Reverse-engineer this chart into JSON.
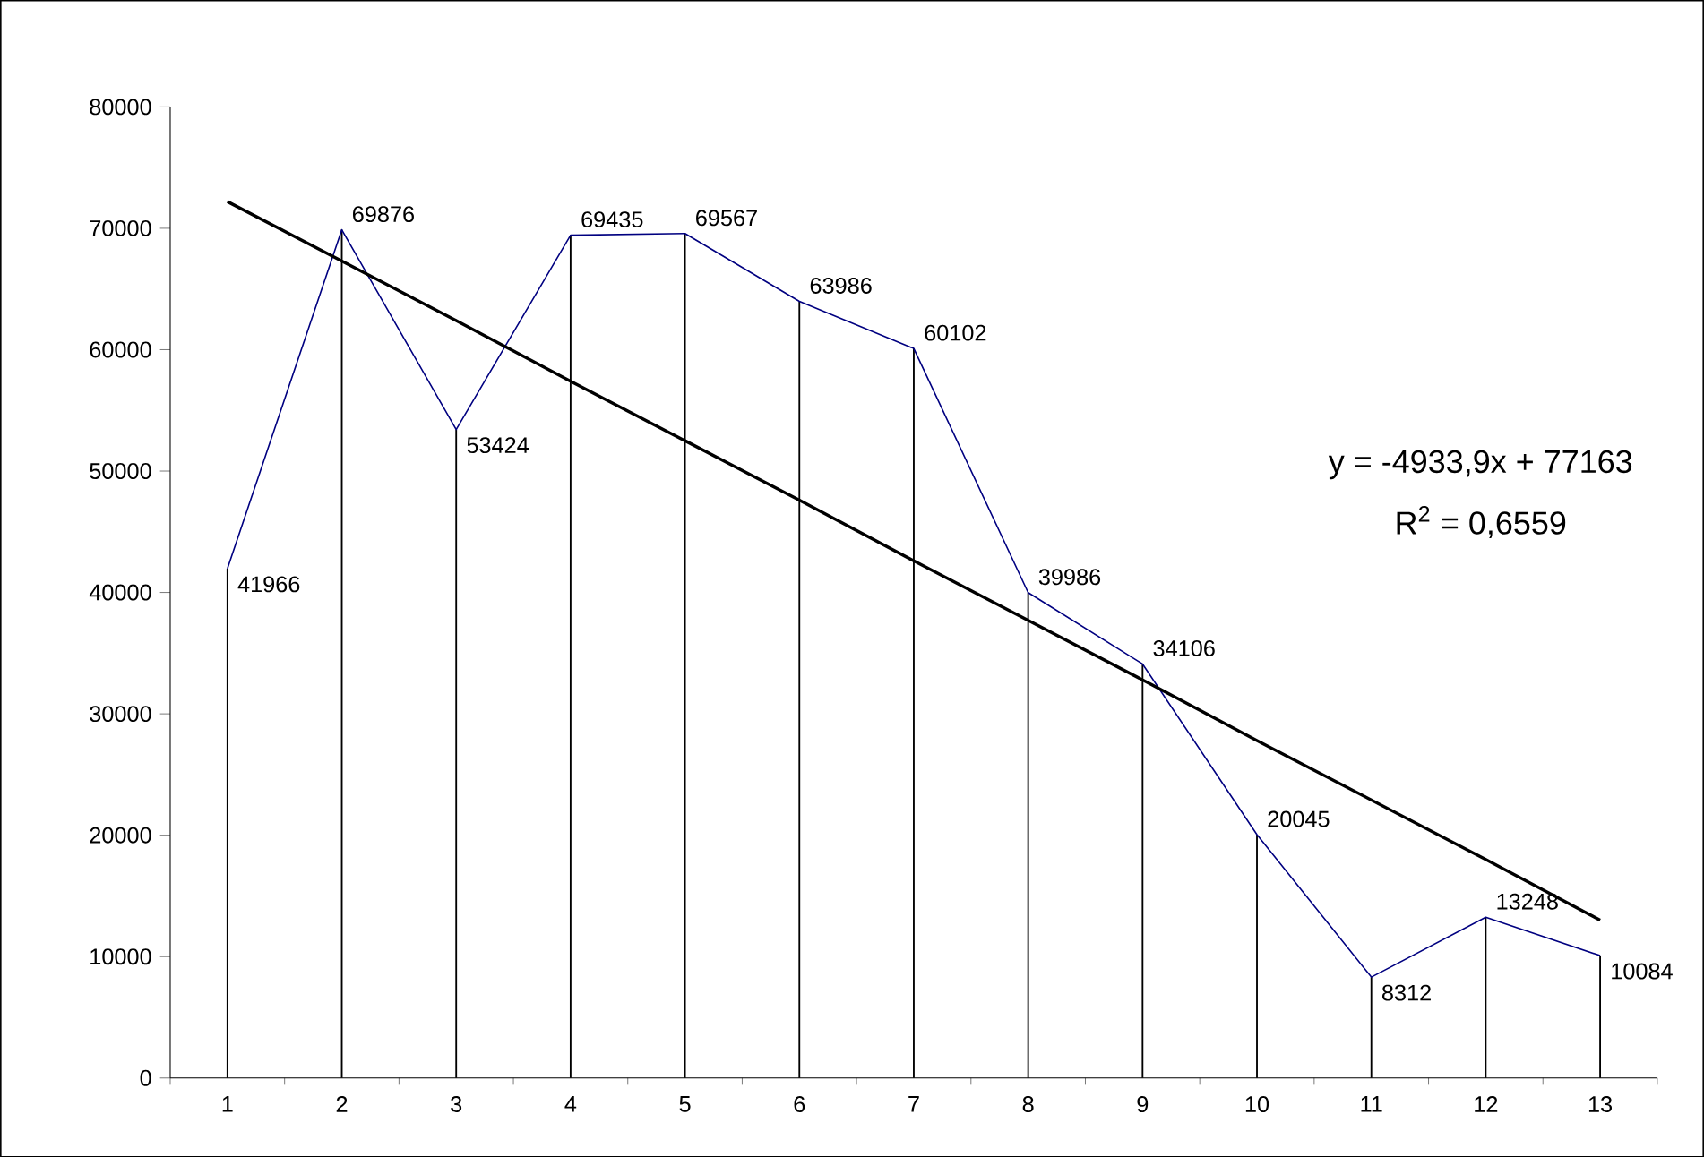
{
  "chart_data": {
    "type": "line",
    "categories": [
      "1",
      "2",
      "3",
      "4",
      "5",
      "6",
      "7",
      "8",
      "9",
      "10",
      "11",
      "12",
      "13"
    ],
    "series": [
      {
        "type": "bar",
        "color": "#000000",
        "values": [
          41966,
          69876,
          53424,
          69435,
          69567,
          63986,
          60102,
          39986,
          34106,
          20045,
          8312,
          13248,
          10084
        ]
      },
      {
        "color": "#000080",
        "values": [
          41966,
          69876,
          53424,
          69435,
          69567,
          63986,
          60102,
          39986,
          34106,
          20045,
          8312,
          13248,
          10084
        ],
        "value_labels": [
          "41966",
          "69876",
          "53424",
          "69435",
          "69567",
          "63986",
          "60102",
          "39986",
          "34106",
          "20045",
          "8312",
          "13248",
          "10084"
        ]
      },
      {
        "color": "#000000",
        "values": [
          72200,
          67300,
          62400,
          57400,
          52500,
          47600,
          42600,
          37700,
          32800,
          27800,
          22900,
          18000,
          13000
        ]
      }
    ],
    "annotations": [
      "y = -4933,9x + 77163",
      "R$^{2}$ = 0,6559"
    ],
    "ylim": [
      0,
      80000
    ],
    "yticks": [
      0,
      10000,
      20000,
      30000,
      40000,
      50000,
      60000,
      70000,
      80000
    ],
    "grid": false
  }
}
